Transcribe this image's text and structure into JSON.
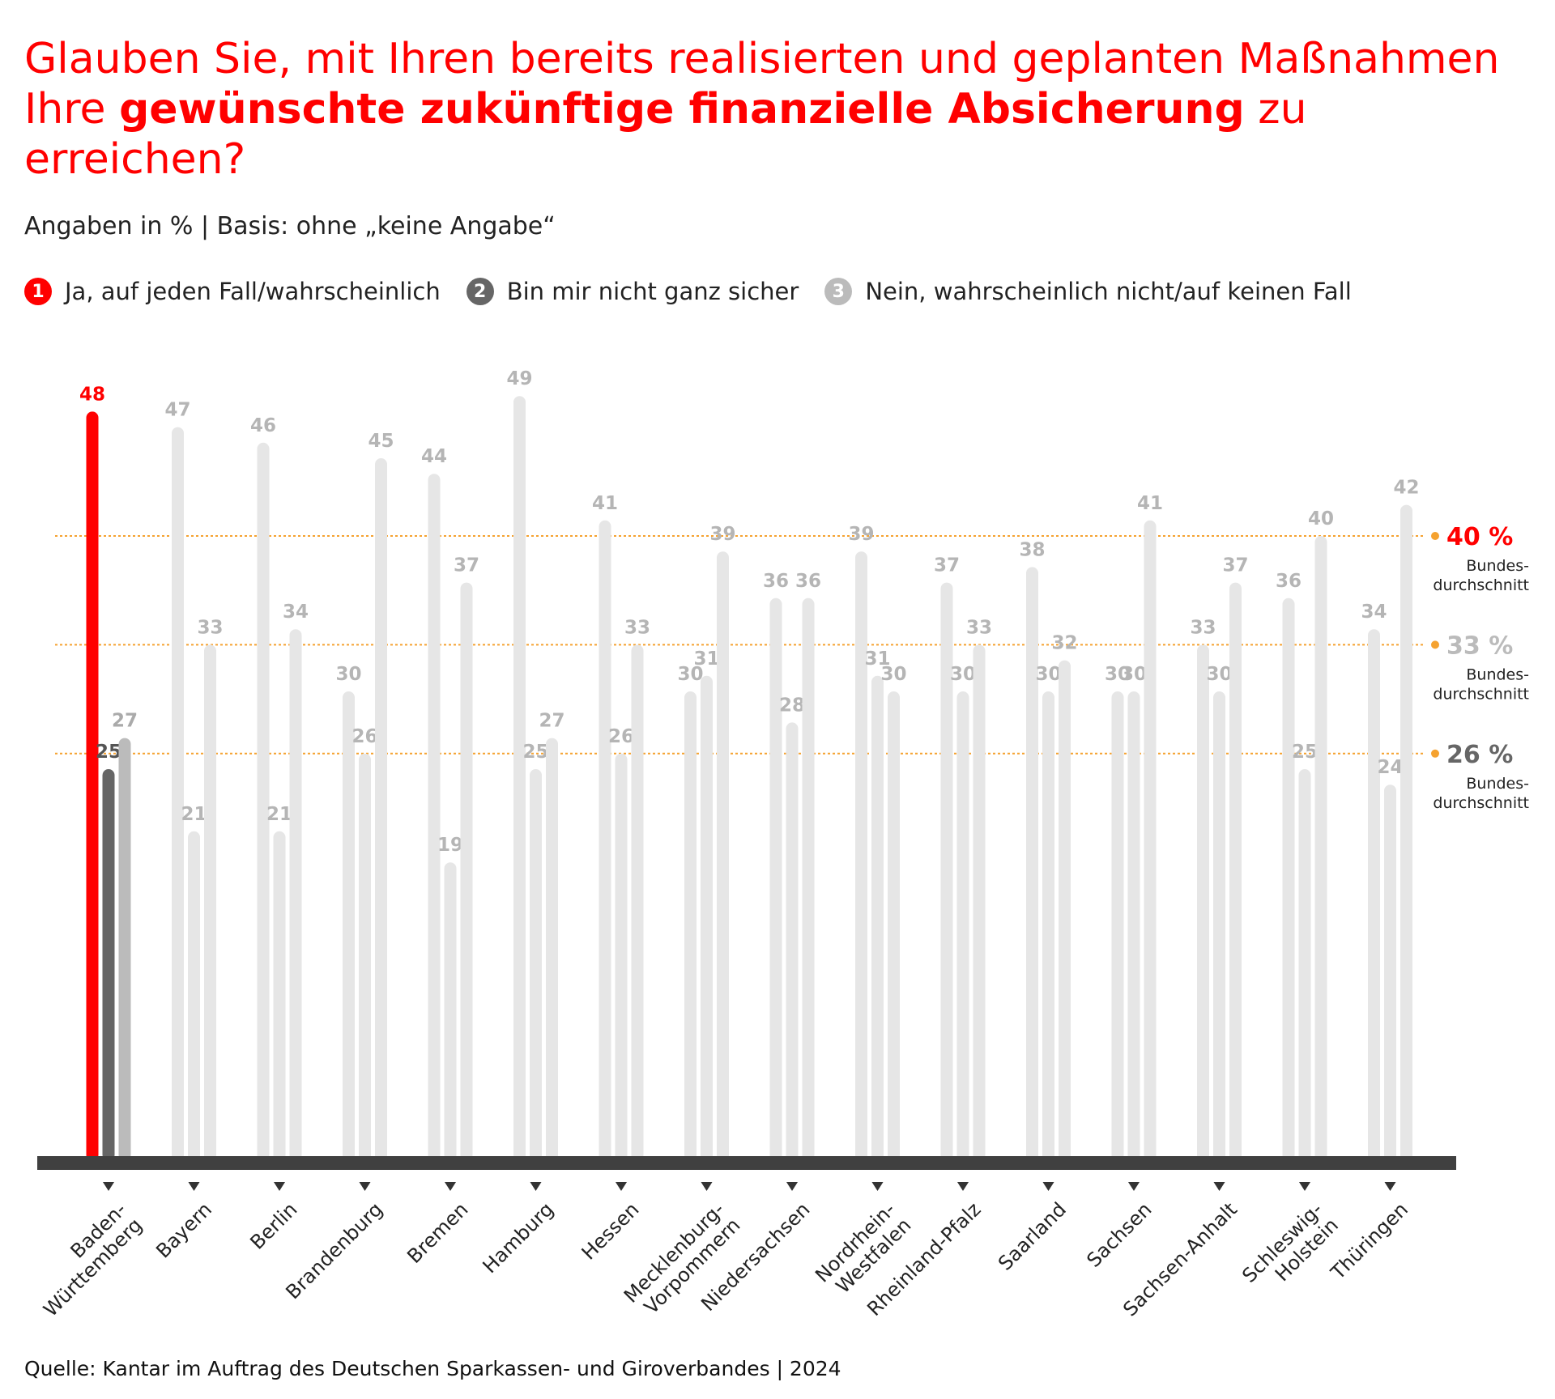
{
  "title": {
    "part1": "Glauben Sie, mit Ihren bereits realisierten und geplanten Maßnahmen Ihre ",
    "bold": "gewünschte zukünftige finanzielle Absicherung",
    "part2": " zu erreichen?"
  },
  "subtitle": "Angaben in % | Basis: ohne „keine Angabe“",
  "legend": [
    {
      "num": "1",
      "label": "Ja, auf jeden Fall/wahrscheinlich",
      "color": "#ff0000"
    },
    {
      "num": "2",
      "label": "Bin mir nicht ganz sicher",
      "color": "#666666"
    },
    {
      "num": "3",
      "label": "Nein, wahrscheinlich nicht/auf keinen Fall",
      "color": "#bbbbbb"
    }
  ],
  "source": "Quelle: Kantar im Auftrag des Deutschen Sparkassen- und Giroverbandes | 2024",
  "chart_data": {
    "type": "bar",
    "title": "Glauben Sie, mit Ihren bereits realisierten und geplanten Maßnahmen Ihre gewünschte zukünftige finanzielle Absicherung zu erreichen?",
    "ylabel": "Angaben in %",
    "ylim": [
      0,
      50
    ],
    "highlighted_category": "Baden-Württemberg",
    "categories": [
      [
        "Baden-",
        "Württemberg"
      ],
      [
        "Bayern"
      ],
      [
        "Berlin"
      ],
      [
        "Brandenburg"
      ],
      [
        "Bremen"
      ],
      [
        "Hamburg"
      ],
      [
        "Hessen"
      ],
      [
        "Mecklenburg-",
        "Vorpommern"
      ],
      [
        "Niedersachsen"
      ],
      [
        "Nordrhein-",
        "Westfalen"
      ],
      [
        "Rheinland-Pfalz"
      ],
      [
        "Saarland"
      ],
      [
        "Sachsen"
      ],
      [
        "Sachsen-Anhalt"
      ],
      [
        "Schleswig-",
        "Holstein"
      ],
      [
        "Thüringen"
      ]
    ],
    "series": [
      {
        "name": "Ja, auf jeden Fall/wahrscheinlich",
        "color": "#ff0000",
        "values": [
          48,
          47,
          46,
          30,
          44,
          49,
          41,
          30,
          36,
          39,
          37,
          38,
          30,
          33,
          36,
          34
        ]
      },
      {
        "name": "Bin mir nicht ganz sicher",
        "color": "#666666",
        "values": [
          25,
          21,
          21,
          26,
          19,
          25,
          26,
          31,
          28,
          31,
          30,
          30,
          30,
          30,
          25,
          24
        ]
      },
      {
        "name": "Nein, wahrscheinlich nicht/auf keinen Fall",
        "color": "#bbbbbb",
        "values": [
          27,
          33,
          34,
          45,
          37,
          27,
          33,
          39,
          36,
          30,
          33,
          32,
          41,
          37,
          40,
          42
        ]
      }
    ],
    "averages": [
      {
        "value": 40,
        "label": "40 %",
        "note": "Bundes-|durchschnitt",
        "color": "#ff0000"
      },
      {
        "value": 33,
        "label": "33 %",
        "note": "Bundes-|durchschnitt",
        "color": "#bbbbbb"
      },
      {
        "value": 26,
        "label": "26 %",
        "note": "Bundes-|durchschnitt",
        "color": "#666666"
      }
    ],
    "muted_bar_color": "#e6e6e6",
    "muted_label_color": "#b5b5b5",
    "average_line_color": "#f5a230",
    "baseline_color": "#404040"
  }
}
